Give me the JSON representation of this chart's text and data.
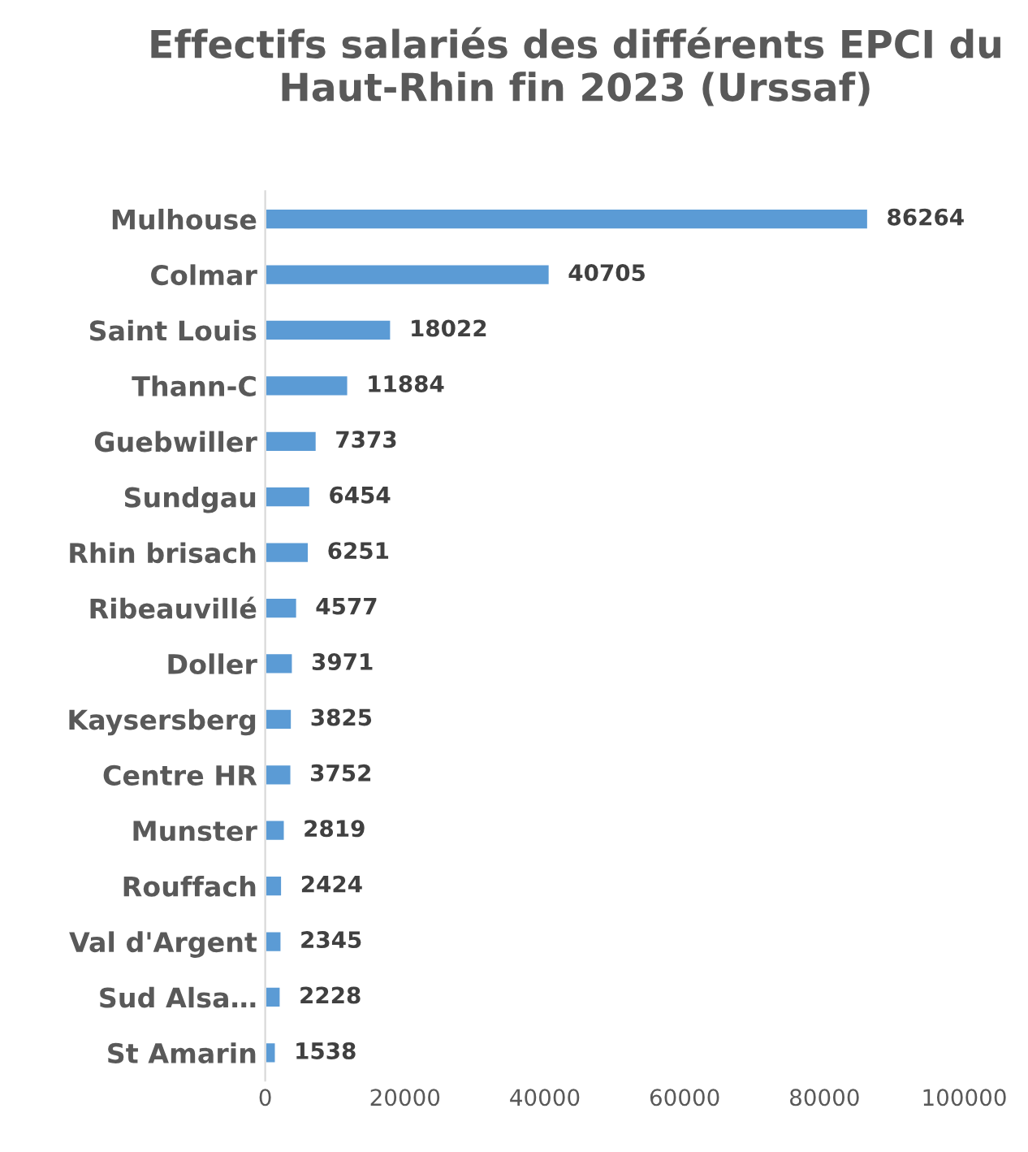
{
  "chart_data": {
    "type": "bar",
    "orientation": "horizontal",
    "title": "Effectifs salariés des différents EPCI du Haut-Rhin fin 2023 (Urssaf)",
    "categories": [
      "Mulhouse",
      "Colmar",
      "Saint Louis",
      "Thann-C",
      "Guebwiller",
      "Sundgau",
      "Rhin brisach",
      "Ribeauvillé",
      "Doller",
      "Kaysersberg",
      "Centre HR",
      "Munster",
      "Rouffach",
      "Val d'Argent",
      "Sud Alsa…",
      "St Amarin"
    ],
    "values": [
      86264,
      40705,
      18022,
      11884,
      7373,
      6454,
      6251,
      4577,
      3971,
      3825,
      3752,
      2819,
      2424,
      2345,
      2228,
      1538
    ],
    "color": "#5b9bd5",
    "xlim": [
      0,
      100000
    ],
    "xticks": [
      0,
      20000,
      40000,
      60000,
      80000,
      100000
    ],
    "grid": false,
    "data_labels": true
  }
}
